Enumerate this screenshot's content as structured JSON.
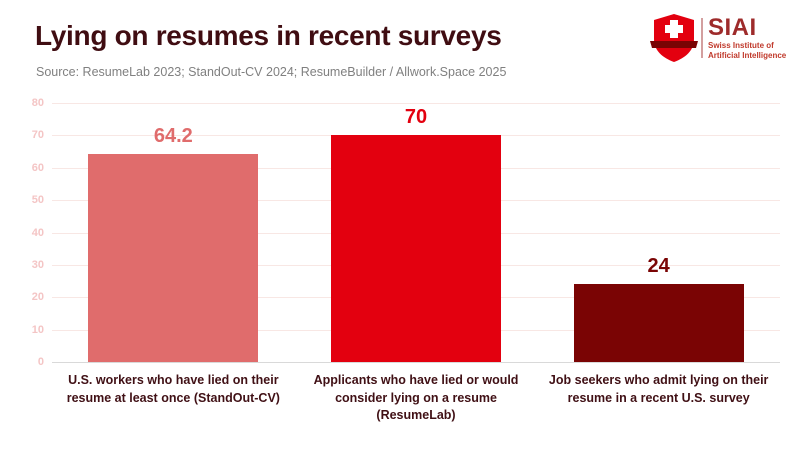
{
  "header": {
    "title": "Lying on resumes in recent surveys",
    "source": "Source: ResumeLab 2023; StandOut-CV 2024; ResumeBuilder / Allwork.Space 2025"
  },
  "logo": {
    "acronym": "SIAI",
    "subtitle_line1": "Swiss Institute of",
    "subtitle_line2": "Artificial Intelligence",
    "shield_color": "#e3000f",
    "banner_color": "#7a0404",
    "acronym_color": "#9e2b2b",
    "subtitle_color": "#c0392b"
  },
  "colors": {
    "background": "#ffffff",
    "title_text": "#400d12",
    "source_text": "#808080"
  },
  "chart_data": {
    "type": "bar",
    "title": "Lying on resumes in recent surveys",
    "categories": [
      "U.S. workers who have lied on their resume at least once (StandOut-CV)",
      "Applicants who have lied or would consider lying on a resume (ResumeLab)",
      "Job seekers who admit lying on their resume in a recent U.S. survey"
    ],
    "values": [
      64.2,
      70,
      24
    ],
    "value_labels": [
      "64.2",
      "70",
      "24"
    ],
    "bar_colors": [
      "#e06c6c",
      "#e3000f",
      "#7a0404"
    ],
    "category_label_color": "#401015",
    "xlabel": "",
    "ylabel": "",
    "ylim": [
      0,
      80
    ],
    "yticks": [
      0,
      10,
      20,
      30,
      40,
      50,
      60,
      70,
      80
    ],
    "grid": true,
    "gridline_color": "#f8e7e4",
    "baseline_color": "#d9d9d9",
    "tick_label_color": "#f4c5c5",
    "legend": null
  }
}
